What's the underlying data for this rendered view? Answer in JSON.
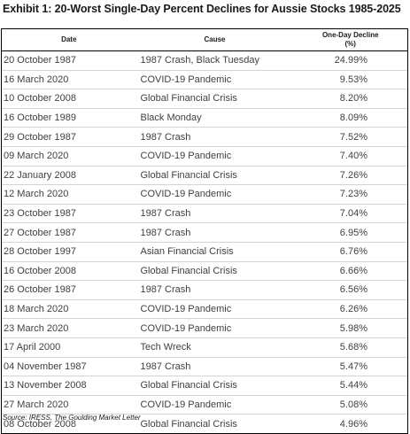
{
  "title": "Exhibit 1: 20-Worst Single-Day Percent Declines for Aussie Stocks 1985-2025",
  "headers": {
    "date": "Date",
    "cause": "Cause",
    "decline_line1": "One-Day Decline",
    "decline_line2": "(%)"
  },
  "rows": [
    {
      "date": "20 October 1987",
      "cause": "1987 Crash, Black Tuesday",
      "decline": "24.99%"
    },
    {
      "date": "16 March 2020",
      "cause": "COVID-19 Pandemic",
      "decline": "9.53%"
    },
    {
      "date": "10 October 2008",
      "cause": "Global Financial Crisis",
      "decline": "8.20%"
    },
    {
      "date": "16 October 1989",
      "cause": "Black Monday",
      "decline": "8.09%"
    },
    {
      "date": "29 October 1987",
      "cause": "1987 Crash",
      "decline": "7.52%"
    },
    {
      "date": "09 March 2020",
      "cause": "COVID-19 Pandemic",
      "decline": "7.40%"
    },
    {
      "date": "22 January 2008",
      "cause": "Global Financial Crisis",
      "decline": "7.26%"
    },
    {
      "date": "12 March 2020",
      "cause": "COVID-19 Pandemic",
      "decline": "7.23%"
    },
    {
      "date": "23 October 1987",
      "cause": "1987 Crash",
      "decline": "7.04%"
    },
    {
      "date": "27 October 1987",
      "cause": "1987 Crash",
      "decline": "6.95%"
    },
    {
      "date": "28 October 1997",
      "cause": "Asian Financial Crisis",
      "decline": "6.76%"
    },
    {
      "date": "16 October 2008",
      "cause": "Global Financial Crisis",
      "decline": "6.66%"
    },
    {
      "date": "26 October 1987",
      "cause": "1987 Crash",
      "decline": "6.56%"
    },
    {
      "date": "18 March 2020",
      "cause": "COVID-19 Pandemic",
      "decline": "6.26%"
    },
    {
      "date": "23 March 2020",
      "cause": "COVID-19 Pandemic",
      "decline": "5.98%"
    },
    {
      "date": "17 April 2000",
      "cause": "Tech Wreck",
      "decline": "5.68%"
    },
    {
      "date": "04 November 1987",
      "cause": "1987 Crash",
      "decline": "5.47%"
    },
    {
      "date": "13 November 2008",
      "cause": "Global Financial Crisis",
      "decline": "5.44%"
    },
    {
      "date": "27 March 2020",
      "cause": "COVID-19 Pandemic",
      "decline": "5.08%"
    },
    {
      "date": "08 October 2008",
      "cause": "Global Financial Crisis",
      "decline": "4.96%"
    }
  ],
  "source": "Source: IRESS, The Goulding Market Letter"
}
